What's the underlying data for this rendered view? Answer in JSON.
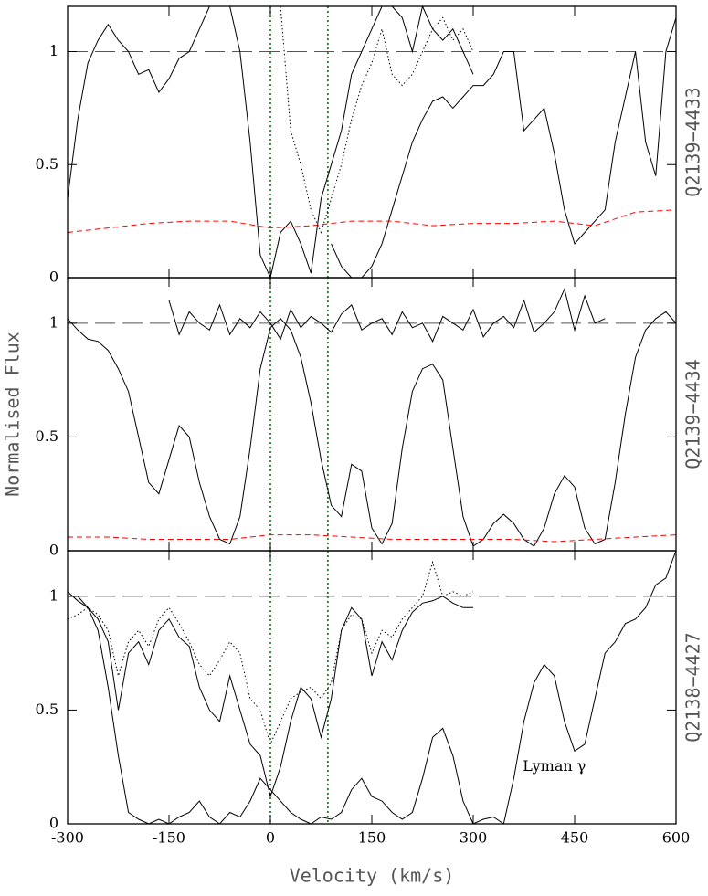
{
  "chart_data": [
    {
      "type": "line",
      "label": "Q2139−4433",
      "xlim": [
        -300,
        600
      ],
      "xticks": [
        -300,
        -150,
        0,
        150,
        300,
        450,
        600
      ],
      "ylim": [
        0,
        1.2
      ],
      "yticks": [
        0,
        0.5,
        1
      ],
      "reference_line": 1,
      "vlines": [
        0,
        85
      ],
      "vline_color": "#006400",
      "series": [
        {
          "color": "#000000",
          "style": "solid",
          "x": [
            -300,
            -285,
            -270,
            -255,
            -240,
            -225,
            -210,
            -195,
            -180,
            -165,
            -150,
            -135,
            -120,
            -105,
            -90,
            -75,
            -60,
            -45,
            -30,
            -15,
            0,
            15,
            30,
            45,
            60,
            75,
            90,
            105,
            120,
            135,
            150,
            165,
            180,
            195,
            210,
            225,
            240,
            255,
            270,
            285,
            300
          ],
          "values": [
            0.35,
            0.7,
            0.95,
            1.05,
            1.12,
            1.05,
            1.0,
            0.9,
            0.92,
            0.82,
            0.88,
            0.97,
            1.0,
            1.1,
            1.2,
            1.2,
            1.2,
            1.0,
            0.6,
            0.1,
            0.0,
            0.2,
            0.25,
            0.15,
            0.02,
            0.35,
            0.5,
            0.65,
            0.9,
            1.0,
            1.1,
            1.2,
            1.2,
            1.15,
            1.0,
            1.2,
            1.1,
            1.05,
            1.1,
            1.0,
            0.9
          ]
        },
        {
          "color": "#000000",
          "style": "solid",
          "x": [
            90,
            105,
            120,
            135,
            150,
            165,
            180,
            195,
            210,
            225,
            240,
            255,
            270,
            285,
            300,
            315,
            330,
            345,
            360,
            375,
            390,
            405,
            420,
            435,
            450,
            465,
            480,
            495,
            510,
            525,
            540,
            555,
            570,
            585,
            600
          ],
          "values": [
            0.15,
            0.05,
            0.0,
            0.0,
            0.05,
            0.15,
            0.3,
            0.45,
            0.6,
            0.7,
            0.78,
            0.8,
            0.75,
            0.8,
            0.85,
            0.85,
            0.9,
            1.0,
            1.0,
            0.65,
            0.7,
            0.75,
            0.55,
            0.3,
            0.15,
            0.2,
            0.25,
            0.3,
            0.6,
            0.8,
            1.0,
            0.6,
            0.45,
            1.0,
            1.15
          ]
        },
        {
          "color": "#000000",
          "style": "dotted",
          "x": [
            15,
            30,
            45,
            60,
            75,
            90,
            105,
            120,
            135,
            150,
            165,
            180,
            195,
            210,
            225,
            240,
            255,
            270,
            285,
            300
          ],
          "values": [
            1.2,
            0.65,
            0.5,
            0.3,
            0.2,
            0.35,
            0.5,
            0.7,
            0.85,
            0.95,
            1.1,
            0.9,
            0.85,
            0.9,
            1.0,
            1.1,
            1.15,
            1.05,
            1.1,
            1.0
          ]
        },
        {
          "color": "#ff0000",
          "style": "dashed",
          "x": [
            -300,
            -240,
            -180,
            -120,
            -60,
            0,
            60,
            120,
            180,
            240,
            300,
            360,
            420,
            480,
            540,
            600
          ],
          "values": [
            0.2,
            0.22,
            0.24,
            0.25,
            0.25,
            0.22,
            0.23,
            0.25,
            0.25,
            0.23,
            0.24,
            0.24,
            0.25,
            0.23,
            0.29,
            0.3
          ]
        }
      ]
    },
    {
      "type": "line",
      "label": "Q2139−4434",
      "ylabel": "Normalised Flux",
      "xlim": [
        -300,
        600
      ],
      "xticks": [
        -300,
        -150,
        0,
        150,
        300,
        450,
        600
      ],
      "ylim": [
        0,
        1.2
      ],
      "yticks": [
        0,
        0.5,
        1
      ],
      "reference_line": 1,
      "vlines": [
        0,
        85
      ],
      "vline_color": "#006400",
      "series": [
        {
          "color": "#000000",
          "style": "solid",
          "x": [
            -300,
            -285,
            -270,
            -255,
            -240,
            -225,
            -210,
            -195,
            -180,
            -165,
            -150,
            -135,
            -120,
            -105,
            -90,
            -75,
            -60,
            -45,
            -30,
            -15,
            0,
            15,
            30,
            45,
            60,
            75,
            90,
            105,
            120,
            135,
            150,
            165,
            180,
            195,
            210,
            225,
            240,
            255,
            270,
            285,
            300,
            315,
            330,
            345,
            360,
            375,
            390,
            405,
            420,
            435,
            450,
            465,
            480,
            495,
            510,
            525,
            540,
            555,
            570,
            585,
            600
          ],
          "values": [
            1.02,
            0.97,
            0.93,
            0.92,
            0.88,
            0.8,
            0.7,
            0.5,
            0.3,
            0.25,
            0.4,
            0.55,
            0.5,
            0.3,
            0.15,
            0.05,
            0.03,
            0.15,
            0.45,
            0.8,
            0.98,
            1.02,
            0.97,
            0.85,
            0.65,
            0.4,
            0.2,
            0.15,
            0.38,
            0.35,
            0.1,
            0.03,
            0.12,
            0.45,
            0.7,
            0.8,
            0.82,
            0.75,
            0.45,
            0.15,
            0.02,
            0.05,
            0.12,
            0.16,
            0.12,
            0.05,
            0.02,
            0.1,
            0.25,
            0.33,
            0.28,
            0.1,
            0.03,
            0.05,
            0.3,
            0.6,
            0.85,
            0.97,
            1.02,
            1.05,
            1.0
          ]
        },
        {
          "color": "#000000",
          "style": "solid",
          "x": [
            -150,
            -135,
            -120,
            -105,
            -90,
            -75,
            -60,
            -45,
            -30,
            -15,
            0,
            15,
            30,
            45,
            60,
            75,
            90,
            105,
            120,
            135,
            150,
            165,
            180,
            195,
            210,
            225,
            240,
            255,
            270,
            285,
            300,
            315,
            330,
            345,
            360,
            375,
            390,
            405,
            420,
            435,
            450,
            465,
            480,
            495
          ],
          "values": [
            1.1,
            0.95,
            1.05,
            1.0,
            0.97,
            1.08,
            0.95,
            1.02,
            0.98,
            1.05,
            1.0,
            0.93,
            1.06,
            0.98,
            1.03,
            1.0,
            0.96,
            1.04,
            1.08,
            0.97,
            1.0,
            1.02,
            0.95,
            1.05,
            0.98,
            1.0,
            0.92,
            1.03,
            1.0,
            0.97,
            1.06,
            0.94,
            1.0,
            1.03,
            0.98,
            1.1,
            0.96,
            1.0,
            1.05,
            1.15,
            0.97,
            1.12,
            1.0,
            1.02
          ]
        },
        {
          "color": "#ff0000",
          "style": "dashed",
          "x": [
            -300,
            -240,
            -180,
            -120,
            -60,
            0,
            60,
            120,
            180,
            240,
            300,
            360,
            420,
            480,
            540,
            600
          ],
          "values": [
            0.06,
            0.06,
            0.05,
            0.05,
            0.05,
            0.07,
            0.07,
            0.06,
            0.05,
            0.05,
            0.05,
            0.05,
            0.04,
            0.05,
            0.06,
            0.07
          ]
        }
      ]
    },
    {
      "type": "line",
      "label": "Q2138−4427",
      "xlabel": "Velocity (km/s)",
      "annotation": {
        "text": "Lyman γ",
        "x": 420,
        "y": 0.25
      },
      "xlim": [
        -300,
        600
      ],
      "xticks": [
        -300,
        -150,
        0,
        150,
        300,
        450,
        600
      ],
      "ylim": [
        0,
        1.2
      ],
      "yticks": [
        0,
        0.5,
        1
      ],
      "reference_line": 1,
      "vlines": [
        0,
        85
      ],
      "vline_color": "#006400",
      "series": [
        {
          "color": "#000000",
          "style": "solid",
          "x": [
            -300,
            -285,
            -270,
            -255,
            -240,
            -225,
            -210,
            -195,
            -180,
            -165,
            -150,
            -135,
            -120,
            -105,
            -90,
            -75,
            -60,
            -45,
            -30,
            -15,
            0,
            15,
            30,
            45,
            60,
            75,
            90,
            105,
            120,
            135,
            150,
            165,
            180,
            195,
            210,
            225,
            240,
            255,
            270,
            285,
            300,
            315,
            330,
            345,
            360,
            375,
            390,
            405,
            420,
            435,
            450,
            465,
            480,
            495,
            510,
            525,
            540,
            555,
            570,
            585,
            600
          ],
          "values": [
            1.0,
            1.0,
            0.95,
            0.85,
            0.6,
            0.3,
            0.05,
            0.02,
            0.0,
            0.02,
            0.0,
            0.03,
            0.05,
            0.1,
            0.03,
            0.0,
            0.05,
            0.03,
            0.1,
            0.2,
            0.15,
            0.1,
            0.05,
            0.02,
            0.0,
            0.03,
            0.02,
            0.05,
            0.15,
            0.2,
            0.12,
            0.1,
            0.05,
            0.02,
            0.05,
            0.2,
            0.38,
            0.42,
            0.3,
            0.1,
            0.0,
            0.02,
            0.03,
            0.0,
            0.2,
            0.45,
            0.62,
            0.7,
            0.65,
            0.45,
            0.32,
            0.35,
            0.55,
            0.75,
            0.8,
            0.88,
            0.9,
            0.95,
            1.05,
            1.08,
            1.2
          ]
        },
        {
          "color": "#000000",
          "style": "solid",
          "x": [
            -300,
            -285,
            -270,
            -255,
            -240,
            -225,
            -210,
            -195,
            -180,
            -165,
            -150,
            -135,
            -120,
            -105,
            -90,
            -75,
            -60,
            -45,
            -30,
            -15,
            0,
            15,
            30,
            45,
            60,
            75,
            90,
            105,
            120,
            135,
            150,
            165,
            180,
            195,
            210,
            225,
            240,
            255,
            270,
            285,
            300
          ],
          "values": [
            1.02,
            0.98,
            0.95,
            0.9,
            0.8,
            0.5,
            0.75,
            0.8,
            0.7,
            0.85,
            0.9,
            0.82,
            0.78,
            0.6,
            0.5,
            0.45,
            0.65,
            0.5,
            0.35,
            0.3,
            0.12,
            0.25,
            0.45,
            0.6,
            0.55,
            0.38,
            0.55,
            0.85,
            0.95,
            0.9,
            0.65,
            0.8,
            0.72,
            0.85,
            0.93,
            0.97,
            0.98,
            1.0,
            0.97,
            0.95,
            0.95
          ]
        },
        {
          "color": "#000000",
          "style": "dotted",
          "x": [
            -300,
            -285,
            -270,
            -255,
            -240,
            -225,
            -210,
            -195,
            -180,
            -165,
            -150,
            -135,
            -120,
            -105,
            -90,
            -75,
            -60,
            -45,
            -30,
            -15,
            0,
            15,
            30,
            45,
            60,
            75,
            90,
            105,
            120,
            135,
            150,
            165,
            180,
            195,
            210,
            225,
            240,
            255,
            270,
            285,
            300
          ],
          "values": [
            0.9,
            0.92,
            0.95,
            0.92,
            0.85,
            0.65,
            0.8,
            0.85,
            0.78,
            0.9,
            0.95,
            0.88,
            0.8,
            0.7,
            0.65,
            0.72,
            0.8,
            0.75,
            0.55,
            0.5,
            0.35,
            0.45,
            0.55,
            0.58,
            0.6,
            0.55,
            0.62,
            0.85,
            0.92,
            0.9,
            0.75,
            0.85,
            0.82,
            0.9,
            0.95,
            1.0,
            1.15,
            1.0,
            1.02,
            1.0,
            1.02
          ]
        }
      ]
    }
  ]
}
